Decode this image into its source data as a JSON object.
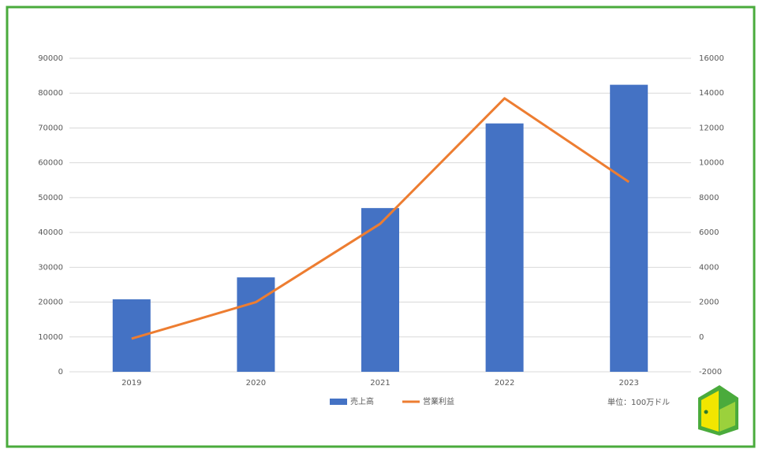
{
  "chart_data": {
    "type": "bar",
    "categories": [
      "2019",
      "2020",
      "2021",
      "2022",
      "2023"
    ],
    "series": [
      {
        "name": "売上高",
        "type": "bar",
        "color": "#4472c4",
        "values": [
          20800,
          27100,
          47000,
          71300,
          82400
        ]
      },
      {
        "name": "営業利益",
        "type": "line",
        "axis": "y2",
        "color": "#ed7d31",
        "values": [
          -100,
          2000,
          6500,
          13700,
          8900
        ]
      }
    ],
    "ylim": [
      0,
      90000
    ],
    "yticks": [
      0,
      10000,
      20000,
      30000,
      40000,
      50000,
      60000,
      70000,
      80000,
      90000
    ],
    "y2lim": [
      -2000,
      16000
    ],
    "y2ticks": [
      -2000,
      0,
      2000,
      4000,
      6000,
      8000,
      10000,
      12000,
      14000,
      16000
    ],
    "grid": true,
    "legend": "bottom",
    "annotation": "単位：100万ドル"
  }
}
